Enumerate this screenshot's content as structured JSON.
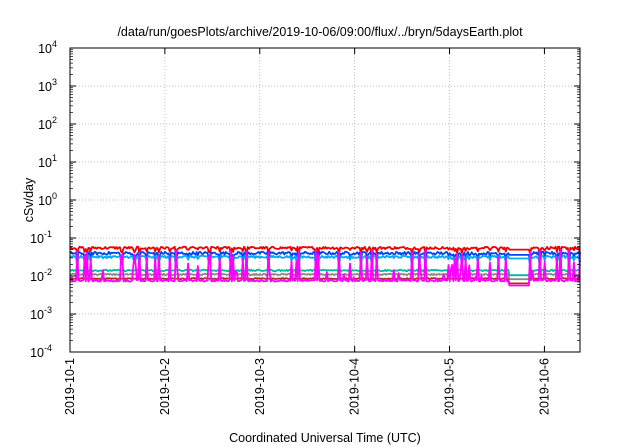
{
  "chart_data": {
    "type": "line",
    "title": "/data/run/goesPlots/archive/2019-10-06/09:00/flux/../bryn/5daysEarth.plot",
    "xlabel": "Coordinated Universal Time (UTC)",
    "ylabel": "cSv/day",
    "yscale": "log",
    "ylim": [
      0.0001,
      10000
    ],
    "xlim": [
      "2019-10-01T00:00",
      "2019-10-06T09:00"
    ],
    "grid": true,
    "x_ticks": [
      "2019-10-1",
      "2019-10-2",
      "2019-10-3",
      "2019-10-4",
      "2019-10-5",
      "2019-10-6"
    ],
    "y_ticks": [
      {
        "value": 0.0001,
        "base": "10",
        "exp": "-4"
      },
      {
        "value": 0.001,
        "base": "10",
        "exp": "-3"
      },
      {
        "value": 0.01,
        "base": "10",
        "exp": "-2"
      },
      {
        "value": 0.1,
        "base": "10",
        "exp": "-1"
      },
      {
        "value": 1,
        "base": "10",
        "exp": "0"
      },
      {
        "value": 10,
        "base": "10",
        "exp": "1"
      },
      {
        "value": 100,
        "base": "10",
        "exp": "2"
      },
      {
        "value": 1000,
        "base": "10",
        "exp": "3"
      },
      {
        "value": 10000,
        "base": "10",
        "exp": "4"
      }
    ],
    "series": [
      {
        "color": "#ee0000",
        "baseline": 0.055,
        "spike_low": 0.035,
        "noise": 0.15
      },
      {
        "color": "#0044ee",
        "baseline": 0.04,
        "spike_low": 0.02,
        "noise": 0.18
      },
      {
        "color": "#00a8ff",
        "baseline": 0.032,
        "spike_low": 0.016,
        "noise": 0.15
      },
      {
        "color": "#00b8a0",
        "baseline": 0.014,
        "spike_low": 0.014,
        "noise": 0.1
      },
      {
        "color": "#888888",
        "baseline": 0.011,
        "spike_low": 0.011,
        "noise": 0.08
      },
      {
        "color": "#b03020",
        "baseline": 0.0085,
        "spike_low": 0.0085,
        "noise": 0.08
      },
      {
        "color": "#ff00ff",
        "baseline": 0.0075,
        "spike_low": 0.0075,
        "noise": 0.1,
        "spikes_to": 0.05
      }
    ]
  }
}
